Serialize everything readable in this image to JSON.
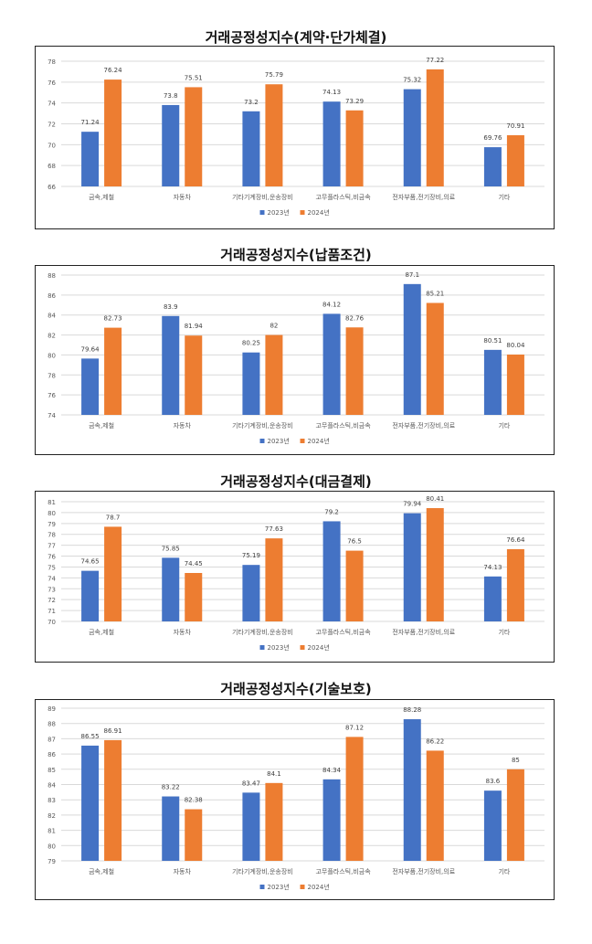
{
  "colors": {
    "s2023": "#4472C4",
    "s2024": "#ED7D31",
    "grid": "#d9d9d9",
    "text": "#595959"
  },
  "chart_data": [
    {
      "type": "bar",
      "title": "거래공정성지수(계약·단가체결)",
      "categories": [
        "금속,제철",
        "자동차",
        "기타기계장비,운송장비",
        "고무플라스틱,비금속",
        "전자부품,전기장비,의료",
        "기타"
      ],
      "series": [
        {
          "name": "2023년",
          "values": [
            71.24,
            73.8,
            73.2,
            74.13,
            75.32,
            69.76
          ]
        },
        {
          "name": "2024년",
          "values": [
            76.24,
            75.51,
            75.79,
            73.29,
            77.22,
            70.91
          ]
        }
      ],
      "value_labels": [
        [
          "71.24",
          "73.8",
          "73.2",
          "74.13",
          "75.32",
          "69.76"
        ],
        [
          "76.24",
          "75.51",
          "75.79",
          "73.29",
          "77.22",
          "70.91"
        ]
      ],
      "ylim": [
        66,
        78
      ],
      "yticks": [
        66,
        68,
        70,
        72,
        74,
        76,
        78
      ],
      "ytick_labels": [
        "66",
        "68",
        "70",
        "72",
        "74",
        "76",
        "78"
      ],
      "grid": true,
      "legend": "bottom"
    },
    {
      "type": "bar",
      "title": "거래공정성지수(납품조건)",
      "categories": [
        "금속,제철",
        "자동차",
        "기타기계장비,운송장비",
        "고무플라스틱,비금속",
        "전자부품,전기장비,의료",
        "기타"
      ],
      "series": [
        {
          "name": "2023년",
          "values": [
            79.64,
            83.9,
            80.25,
            84.12,
            87.1,
            80.51
          ]
        },
        {
          "name": "2024년",
          "values": [
            82.73,
            81.94,
            82,
            82.76,
            85.21,
            80.04
          ]
        }
      ],
      "value_labels": [
        [
          "79.64",
          "83.9",
          "80.25",
          "84.12",
          "87.1",
          "80.51"
        ],
        [
          "82.73",
          "81.94",
          "82",
          "82.76",
          "85.21",
          "80.04"
        ]
      ],
      "ylim": [
        74,
        88
      ],
      "yticks": [
        74,
        76,
        78,
        80,
        82,
        84,
        86,
        88
      ],
      "ytick_labels": [
        "74",
        "76",
        "78",
        "80",
        "82",
        "84",
        "86",
        "88"
      ],
      "grid": true,
      "legend": "bottom"
    },
    {
      "type": "bar",
      "title": "거래공정성지수(대금결제)",
      "categories": [
        "금속,제철",
        "자동차",
        "기타기계장비,운송장비",
        "고무플라스틱,비금속",
        "전자부품,전기장비,의료",
        "기타"
      ],
      "series": [
        {
          "name": "2023년",
          "values": [
            74.65,
            75.85,
            75.19,
            79.2,
            79.94,
            74.13
          ]
        },
        {
          "name": "2024년",
          "values": [
            78.7,
            74.45,
            77.63,
            76.5,
            80.41,
            76.64
          ]
        }
      ],
      "value_labels": [
        [
          "74.65",
          "75.85",
          "75.19",
          "79.2",
          "79.94",
          "74.13"
        ],
        [
          "78.7",
          "74.45",
          "77.63",
          "76.5",
          "80.41",
          "76.64"
        ]
      ],
      "ylim": [
        70,
        81
      ],
      "yticks": [
        70,
        71,
        72,
        73,
        74,
        75,
        76,
        77,
        78,
        79,
        80,
        81
      ],
      "ytick_labels": [
        "70",
        "71",
        "72",
        "73",
        "74",
        "75",
        "76",
        "77",
        "78",
        "79",
        "80",
        "81"
      ],
      "grid": true,
      "legend": "bottom"
    },
    {
      "type": "bar",
      "title": "거래공정성지수(기술보호)",
      "categories": [
        "금속,제철",
        "자동차",
        "기타기계장비,운송장비",
        "고무플라스틱,비금속",
        "전자부품,전기장비,의료",
        "기타"
      ],
      "series": [
        {
          "name": "2023년",
          "values": [
            86.55,
            83.22,
            83.47,
            84.34,
            88.28,
            83.6
          ]
        },
        {
          "name": "2024년",
          "values": [
            86.91,
            82.38,
            84.1,
            87.12,
            86.22,
            85
          ]
        }
      ],
      "value_labels": [
        [
          "86.55",
          "83.22",
          "83.47",
          "84.34",
          "88.28",
          "83.6"
        ],
        [
          "86.91",
          "82.38",
          "84.1",
          "87.12",
          "86.22",
          "85"
        ]
      ],
      "ylim": [
        79,
        89
      ],
      "yticks": [
        79,
        80,
        81,
        82,
        83,
        84,
        85,
        86,
        87,
        88,
        89
      ],
      "ytick_labels": [
        "79",
        "80",
        "81",
        "82",
        "83",
        "84",
        "85",
        "86",
        "87",
        "88",
        "89"
      ],
      "grid": true,
      "legend": "bottom"
    }
  ]
}
